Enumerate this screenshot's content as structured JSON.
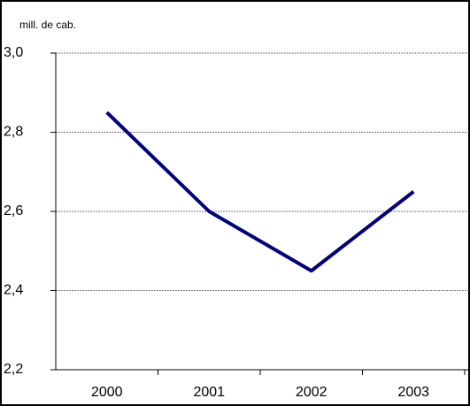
{
  "chart_data": {
    "type": "line",
    "y_label": "mill. de cab.",
    "categories": [
      "2000",
      "2001",
      "2002",
      "2003"
    ],
    "series": [
      {
        "name": "mill. de cab.",
        "color": "#000080",
        "values": [
          2.85,
          2.6,
          2.45,
          2.65
        ]
      }
    ],
    "ylim": [
      2.2,
      3.0
    ],
    "yticks": [
      {
        "value": 2.2,
        "label": "2,2"
      },
      {
        "value": 2.4,
        "label": "2,4"
      },
      {
        "value": 2.6,
        "label": "2,6"
      },
      {
        "value": 2.8,
        "label": "2,8"
      },
      {
        "value": 3.0,
        "label": "3,0"
      }
    ],
    "grid": true
  }
}
